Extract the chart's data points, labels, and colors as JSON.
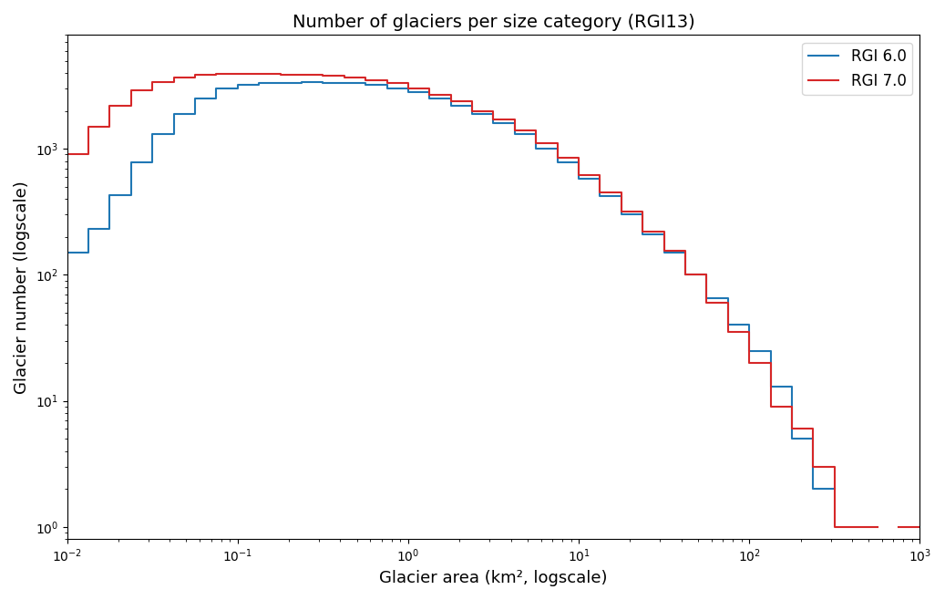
{
  "title": "Number of glaciers per size category (RGI13)",
  "xlabel": "Glacier area (km², logscale)",
  "ylabel": "Glacier number (logscale)",
  "xlim_log": [
    -2,
    3
  ],
  "ylim": [
    0.8,
    8000
  ],
  "legend_labels": [
    "RGI 6.0",
    "RGI 7.0"
  ],
  "colors": [
    "#1f77b4",
    "#d62728"
  ],
  "num_bins": 40,
  "rgi6_counts": [
    150,
    230,
    430,
    780,
    1300,
    1900,
    2500,
    3000,
    3200,
    3300,
    3350,
    3380,
    3350,
    3300,
    3200,
    3000,
    2800,
    2500,
    2200,
    1900,
    1600,
    1300,
    1000,
    780,
    580,
    420,
    300,
    210,
    150,
    100,
    65,
    40,
    25,
    13,
    5,
    2,
    0,
    0,
    0,
    0
  ],
  "rgi7_counts": [
    900,
    1500,
    2200,
    2900,
    3400,
    3700,
    3850,
    3900,
    3900,
    3900,
    3880,
    3850,
    3800,
    3700,
    3500,
    3300,
    3000,
    2700,
    2400,
    2000,
    1700,
    1400,
    1100,
    850,
    620,
    450,
    320,
    220,
    155,
    100,
    60,
    35,
    20,
    9,
    6,
    3,
    1,
    1,
    0,
    1
  ]
}
